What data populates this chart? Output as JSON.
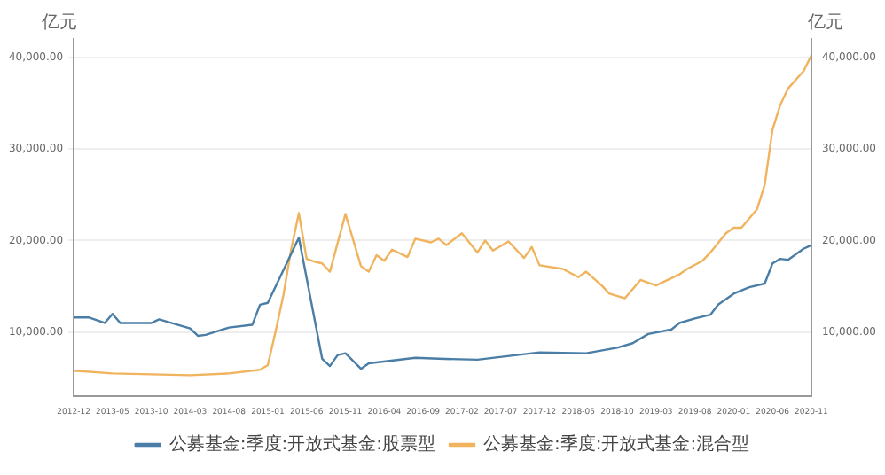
{
  "chart_data": {
    "type": "line",
    "ylabel": "亿元",
    "y2label": "亿元",
    "xlim": [
      "2012-12",
      "2020-11"
    ],
    "xticks": [
      "2012-12",
      "2013-05",
      "2013-10",
      "2014-03",
      "2014-08",
      "2015-01",
      "2015-06",
      "2015-11",
      "2016-04",
      "2016-09",
      "2017-02",
      "2017-07",
      "2017-12",
      "2018-05",
      "2018-10",
      "2019-03",
      "2019-08",
      "2020-01",
      "2020-06",
      "2020-11"
    ],
    "ylim": [
      3000,
      42000
    ],
    "yticks": [
      {
        "value": 10000,
        "label": "10,000.00"
      },
      {
        "value": 20000,
        "label": "20,000.00"
      },
      {
        "value": 30000,
        "label": "30,000.00"
      },
      {
        "value": 40000,
        "label": "40,000.00"
      }
    ],
    "y2lim": [
      3000,
      42000
    ],
    "y2ticks": [
      {
        "value": 10000,
        "label": "10,000.00"
      },
      {
        "value": 20000,
        "label": "20,000.00"
      },
      {
        "value": 30000,
        "label": "30,000.00"
      },
      {
        "value": 40000,
        "label": "40,000.00"
      }
    ],
    "grid": "y",
    "legend": "bottom",
    "marker": "none",
    "line_style": "solid",
    "series": [
      {
        "name": "公募基金:季度:开放式基金:股票型",
        "color": "#4a7ea6",
        "x": [
          "2012-12",
          "2013-02",
          "2013-04",
          "2013-05",
          "2013-06",
          "2013-10",
          "2013-11",
          "2014-03",
          "2014-04",
          "2014-05",
          "2014-08",
          "2014-11",
          "2014-12",
          "2015-01",
          "2015-05",
          "2015-08",
          "2015-09",
          "2015-10",
          "2015-11",
          "2016-01",
          "2016-02",
          "2016-08",
          "2016-11",
          "2017-04",
          "2017-12",
          "2018-06",
          "2018-10",
          "2018-12",
          "2019-02",
          "2019-05",
          "2019-06",
          "2019-08",
          "2019-10",
          "2019-11",
          "2020-01",
          "2020-03",
          "2020-05",
          "2020-06",
          "2020-07",
          "2020-08",
          "2020-10",
          "2020-11"
        ],
        "values": [
          11600,
          11600,
          11000,
          12000,
          11000,
          11000,
          11400,
          10400,
          9600,
          9700,
          10500,
          10800,
          13000,
          13200,
          20300,
          7100,
          6300,
          7500,
          7700,
          6000,
          6600,
          7200,
          7100,
          7000,
          7800,
          7700,
          8300,
          8800,
          9800,
          10300,
          11000,
          11500,
          11900,
          13000,
          14200,
          14900,
          15300,
          17500,
          18000,
          17900,
          19100,
          19500
        ]
      },
      {
        "name": "公募基金:季度:开放式基金:混合型",
        "color": "#f0b35e",
        "x": [
          "2012-12",
          "2013-05",
          "2013-10",
          "2014-03",
          "2014-08",
          "2014-12",
          "2015-01",
          "2015-02",
          "2015-03",
          "2015-04",
          "2015-05",
          "2015-06",
          "2015-07",
          "2015-08",
          "2015-09",
          "2015-11",
          "2016-01",
          "2016-02",
          "2016-03",
          "2016-04",
          "2016-05",
          "2016-07",
          "2016-08",
          "2016-10",
          "2016-11",
          "2016-12",
          "2017-02",
          "2017-04",
          "2017-05",
          "2017-06",
          "2017-08",
          "2017-10",
          "2017-11",
          "2017-12",
          "2018-03",
          "2018-05",
          "2018-06",
          "2018-08",
          "2018-09",
          "2018-11",
          "2019-01",
          "2019-03",
          "2019-06",
          "2019-07",
          "2019-09",
          "2019-10",
          "2019-12",
          "2020-01",
          "2020-02",
          "2020-04",
          "2020-05",
          "2020-06",
          "2020-07",
          "2020-08",
          "2020-10",
          "2020-11"
        ],
        "values": [
          5800,
          5500,
          5400,
          5300,
          5500,
          5900,
          6400,
          10050,
          14000,
          19000,
          23000,
          18000,
          17700,
          17500,
          16600,
          22900,
          17200,
          16600,
          18400,
          17800,
          19000,
          18200,
          20200,
          19800,
          20200,
          19500,
          20800,
          18700,
          20000,
          18900,
          19900,
          18100,
          19300,
          17300,
          16900,
          16000,
          16600,
          15100,
          14200,
          13700,
          15700,
          15100,
          16300,
          16900,
          17800,
          18700,
          20800,
          21400,
          21400,
          23400,
          26100,
          32100,
          34800,
          36600,
          38500,
          40200
        ]
      }
    ]
  }
}
